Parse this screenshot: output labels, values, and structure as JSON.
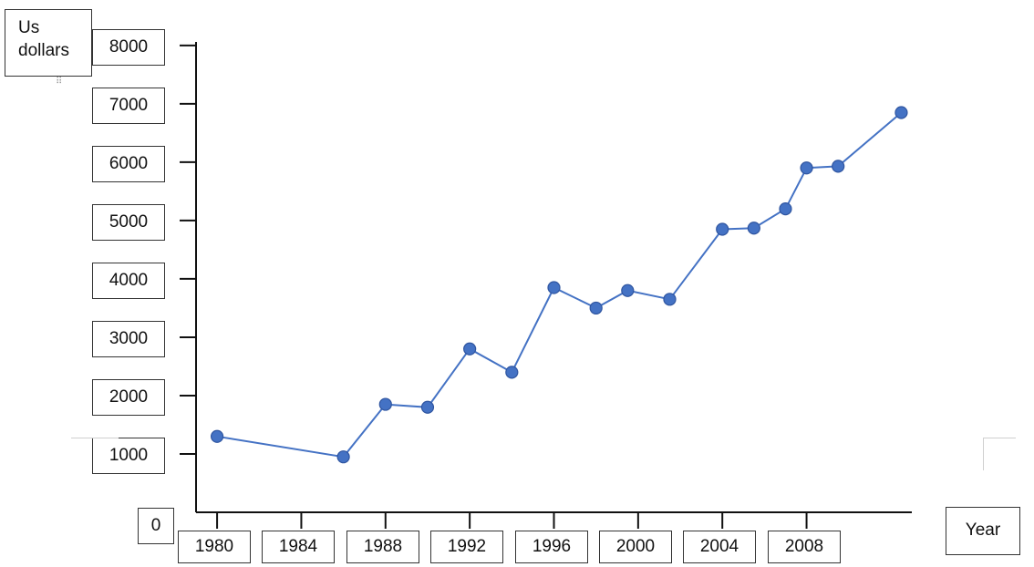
{
  "chart_data": {
    "type": "line",
    "ylabel": "Us dollars",
    "xlabel": "Year",
    "ylim": [
      0,
      8000
    ],
    "yticks": [
      0,
      1000,
      2000,
      3000,
      4000,
      5000,
      6000,
      7000,
      8000
    ],
    "xlim": [
      1979,
      2013
    ],
    "xticks": [
      1980,
      1984,
      1988,
      1992,
      1996,
      2000,
      2004,
      2008
    ],
    "grid": false,
    "series": [
      {
        "color": "#4472c4",
        "points": [
          {
            "x": 1980,
            "y": 1300
          },
          {
            "x": 1986,
            "y": 950
          },
          {
            "x": 1988,
            "y": 1850
          },
          {
            "x": 1990,
            "y": 1800
          },
          {
            "x": 1992,
            "y": 2800
          },
          {
            "x": 1994,
            "y": 2400
          },
          {
            "x": 1996,
            "y": 3850
          },
          {
            "x": 1998,
            "y": 3500
          },
          {
            "x": 1999.5,
            "y": 3800
          },
          {
            "x": 2001.5,
            "y": 3650
          },
          {
            "x": 2004,
            "y": 4850
          },
          {
            "x": 2005.5,
            "y": 4870
          },
          {
            "x": 2007,
            "y": 5200
          },
          {
            "x": 2008,
            "y": 5900
          },
          {
            "x": 2009.5,
            "y": 5930
          },
          {
            "x": 2012.5,
            "y": 6850
          }
        ]
      }
    ]
  }
}
